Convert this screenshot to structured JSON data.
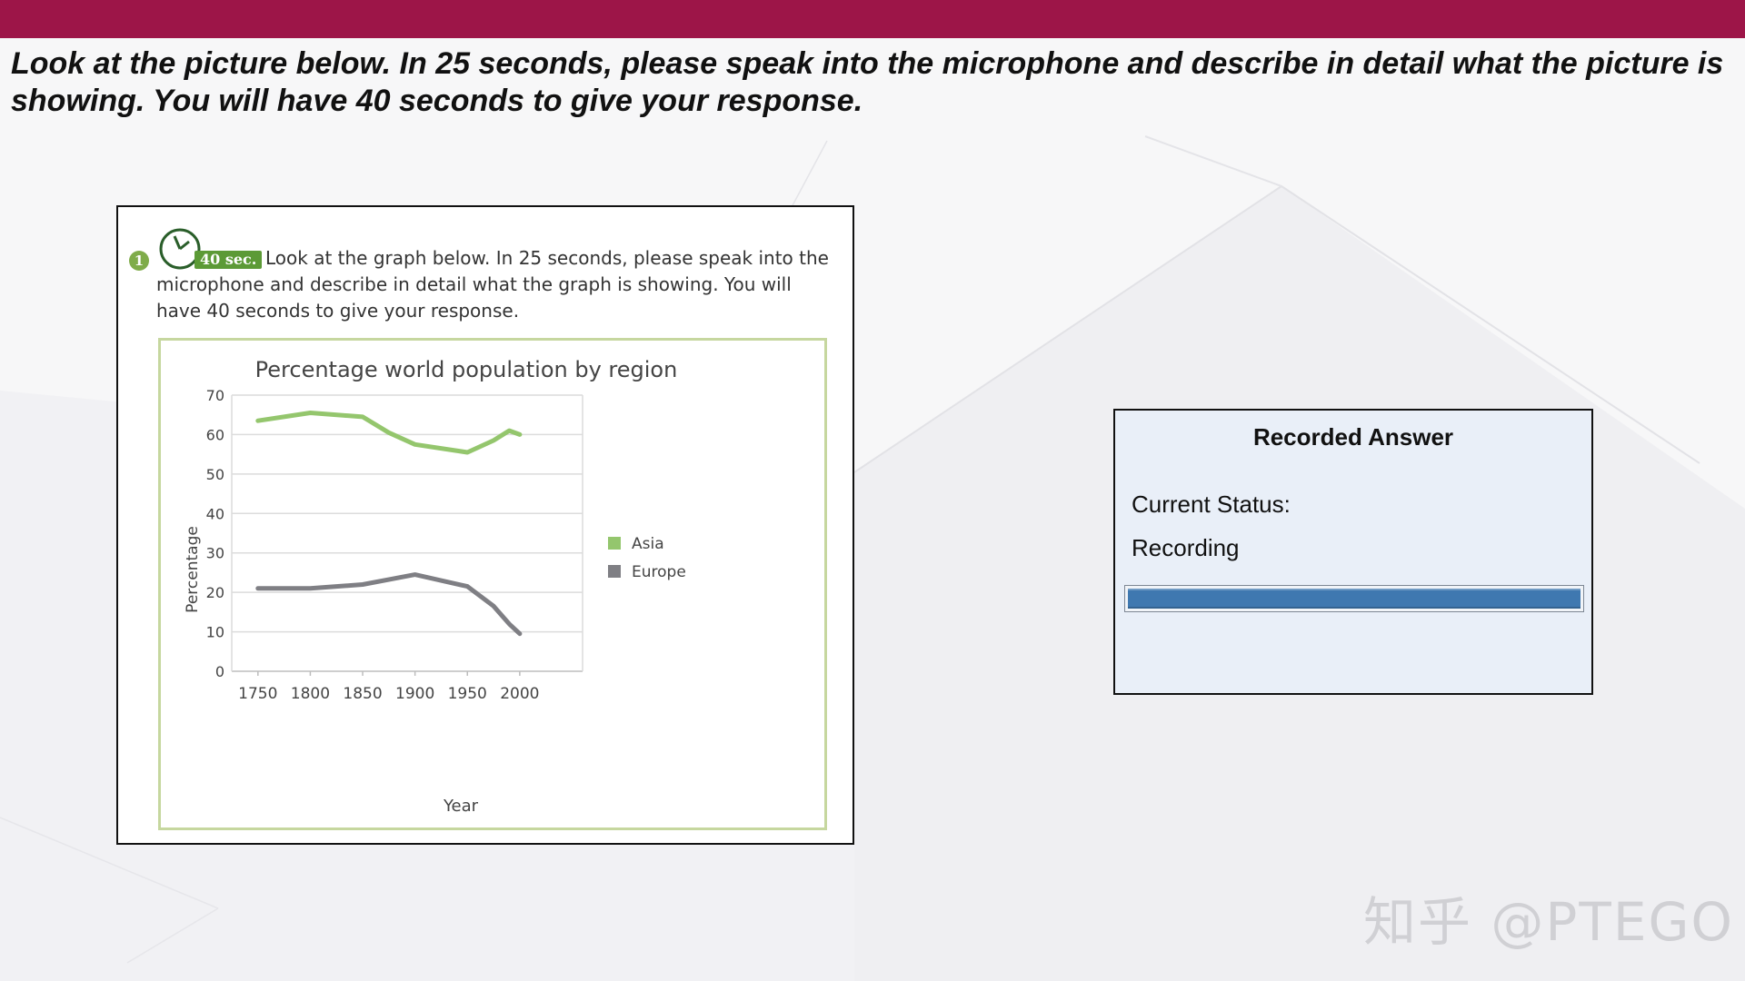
{
  "header": {
    "instruction": "Look at the picture below. In 25 seconds, please speak into the microphone and describe in detail what the picture is showing. You will have 40 seconds to give your response."
  },
  "question": {
    "number": "1",
    "time_badge": "40 sec.",
    "text": "Look at the graph below. In 25 seconds, please speak into the microphone and describe in detail what the graph is showing. You will have 40 seconds to give your response."
  },
  "chart_data": {
    "type": "line",
    "title": "Percentage world population by region",
    "xlabel": "Year",
    "ylabel": "Percentage",
    "x": [
      1750,
      1800,
      1850,
      1900,
      1950,
      2000
    ],
    "xticks": [
      "1750",
      "1800",
      "1850",
      "1900",
      "1950",
      "2000"
    ],
    "ylim": [
      0,
      70
    ],
    "yticks": [
      "0",
      "10",
      "20",
      "30",
      "40",
      "50",
      "60",
      "70"
    ],
    "grid": true,
    "legend_position": "right",
    "series": [
      {
        "name": "Asia",
        "color": "#94c66d",
        "points": [
          [
            1750,
            63.5
          ],
          [
            1800,
            65.5
          ],
          [
            1850,
            64.5
          ],
          [
            1875,
            60.5
          ],
          [
            1900,
            57.5
          ],
          [
            1950,
            55.5
          ],
          [
            1975,
            58.5
          ],
          [
            1990,
            61
          ],
          [
            2000,
            60
          ]
        ]
      },
      {
        "name": "Europe",
        "color": "#7f7f84",
        "points": [
          [
            1750,
            21
          ],
          [
            1800,
            21
          ],
          [
            1850,
            22
          ],
          [
            1900,
            24.5
          ],
          [
            1950,
            21.5
          ],
          [
            1975,
            16.5
          ],
          [
            1990,
            12
          ],
          [
            2000,
            9.5
          ]
        ]
      }
    ]
  },
  "recorder": {
    "title": "Recorded Answer",
    "status_label": "Current Status:",
    "status_value": "Recording",
    "progress": 1.0
  },
  "watermark": "知乎 @PTEGO",
  "colors": {
    "brand": "#9d1548",
    "progress": "#3f78b0"
  }
}
